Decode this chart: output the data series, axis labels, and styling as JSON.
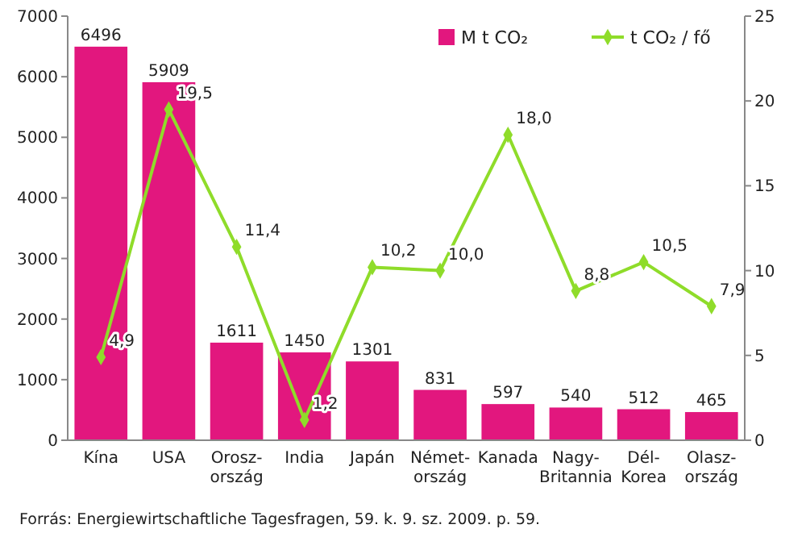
{
  "chart_data": {
    "type": "bar",
    "categories": [
      "Kína",
      "USA",
      "Orosz-\nország",
      "India",
      "Japán",
      "Német-\nország",
      "Kanada",
      "Nagy-\nBritannia",
      "Dél-\nKorea",
      "Olasz-\nország"
    ],
    "series": [
      {
        "name": "M t CO₂",
        "color": "#e2177e",
        "values": [
          6496,
          5909,
          1611,
          1450,
          1301,
          831,
          597,
          540,
          512,
          465
        ],
        "value_labels": [
          "6496",
          "5909",
          "1611",
          "1450",
          "1301",
          "831",
          "597",
          "540",
          "512",
          "465"
        ]
      },
      {
        "name": "t CO₂ / fő",
        "type": "line",
        "axis": "y2",
        "color": "#8fdc2a",
        "values": [
          4.9,
          19.5,
          11.4,
          1.2,
          10.2,
          10.0,
          18.0,
          8.8,
          10.5,
          7.9
        ],
        "value_labels": [
          "4,9",
          "19,5",
          "11,4",
          "1,2",
          "10,2",
          "10,0",
          "18,0",
          "8,8",
          "10,5",
          "7,9"
        ]
      }
    ],
    "ylim": [
      0,
      7000
    ],
    "yticks": [
      0,
      1000,
      2000,
      3000,
      4000,
      5000,
      6000,
      7000
    ],
    "y2lim": [
      0,
      25
    ],
    "y2ticks": [
      0,
      5,
      10,
      15,
      20,
      25
    ],
    "marker": "diamond",
    "legend": "top right",
    "grid": false,
    "annotations": [
      "Forrás: Energiewirtschaftliche Tagesfragen, 59. k. 9. sz. 2009. p. 59."
    ]
  }
}
